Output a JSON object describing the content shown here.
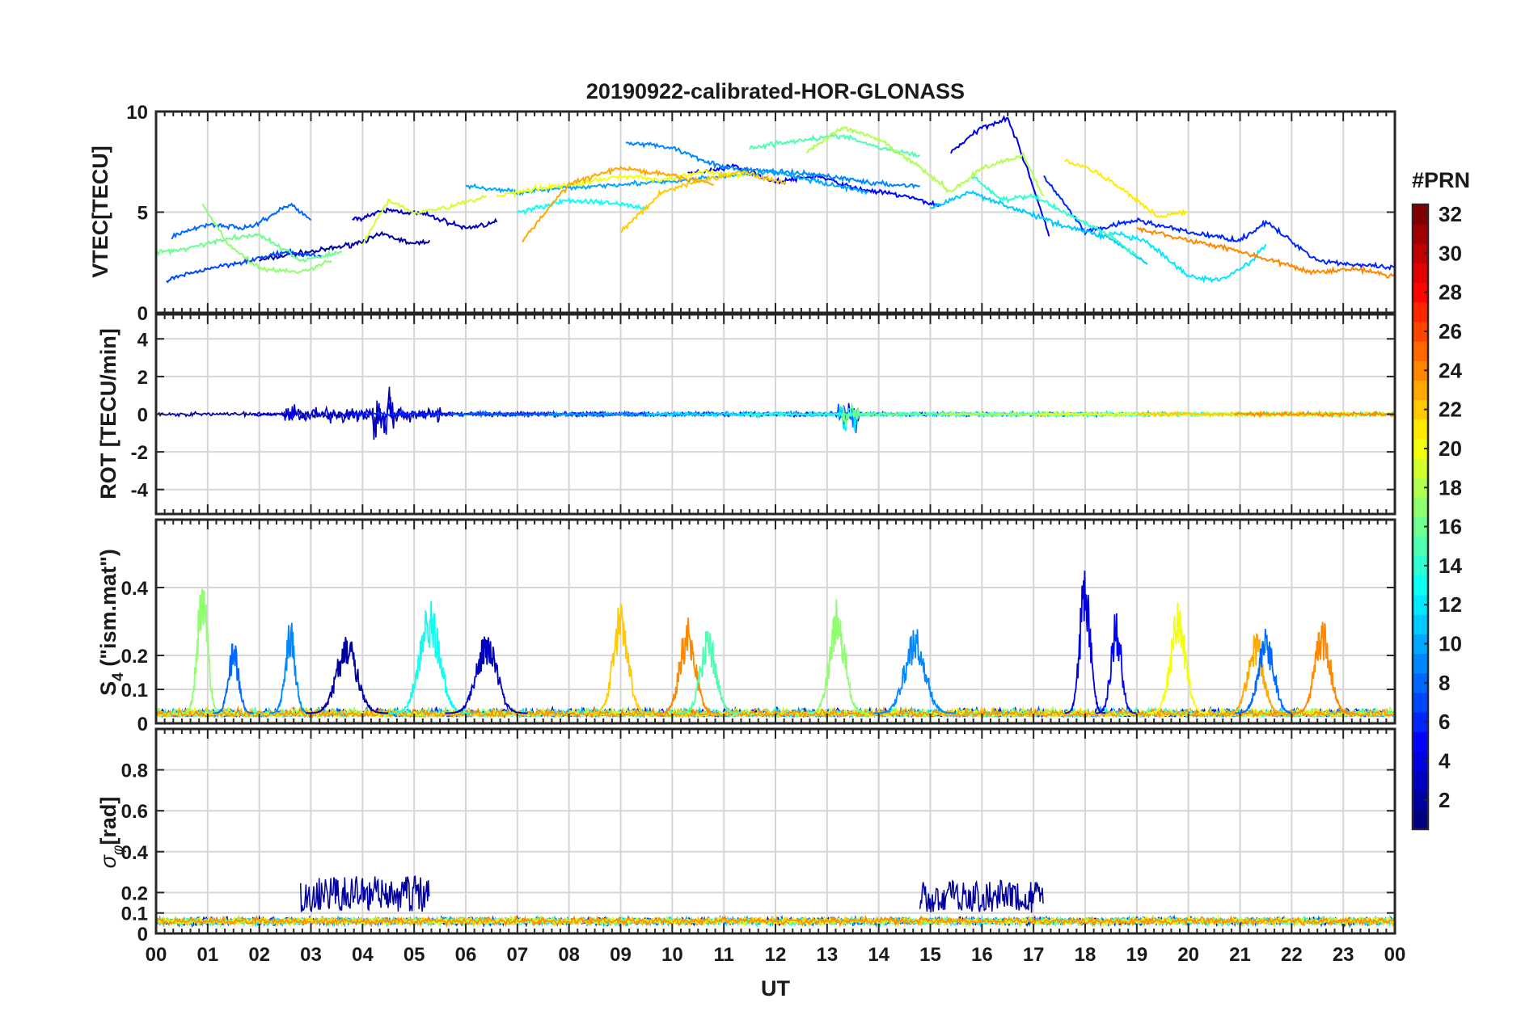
{
  "figure": {
    "title": "20190922-calibrated-HOR-GLONASS",
    "xlabel": "UT",
    "x_ticks": [
      "00",
      "01",
      "02",
      "03",
      "04",
      "05",
      "06",
      "07",
      "08",
      "09",
      "10",
      "11",
      "12",
      "13",
      "14",
      "15",
      "16",
      "17",
      "18",
      "19",
      "20",
      "21",
      "22",
      "23",
      "00"
    ],
    "colorbar": {
      "title": "#PRN",
      "range": [
        1,
        32
      ],
      "ticks": [
        2,
        4,
        6,
        8,
        10,
        12,
        14,
        16,
        18,
        20,
        22,
        24,
        26,
        28,
        30,
        32
      ],
      "colormap": "jet"
    }
  },
  "chart_data": [
    {
      "type": "line",
      "panel": "vtec",
      "ylabel": "VTEC[TECU]",
      "ylim": [
        0,
        10
      ],
      "yticks": [
        0,
        5,
        10
      ],
      "ytick_labels": [
        "0",
        "5",
        "10"
      ],
      "xlim_hours": [
        0,
        24
      ],
      "grid": true,
      "series": [
        {
          "prn": 2,
          "t": [
            2.0,
            2.6,
            3.2,
            3.8,
            4.4,
            5.0,
            5.3
          ],
          "v": [
            2.6,
            2.9,
            3.1,
            3.4,
            3.9,
            3.4,
            3.6
          ]
        },
        {
          "prn": 3,
          "t": [
            3.8,
            4.5,
            5.2,
            6.0,
            6.6
          ],
          "v": [
            4.6,
            5.1,
            4.9,
            4.2,
            4.5
          ]
        },
        {
          "prn": 5,
          "t": [
            10.3,
            11.2,
            12.0,
            12.8,
            13.5,
            14.5,
            15.2
          ],
          "v": [
            6.9,
            7.3,
            6.5,
            6.8,
            6.2,
            5.8,
            5.3
          ]
        },
        {
          "prn": 4,
          "t": [
            15.4,
            16.0,
            16.5,
            16.9,
            17.3
          ],
          "v": [
            8.0,
            9.2,
            9.7,
            7.0,
            3.8
          ]
        },
        {
          "prn": 6,
          "t": [
            17.2,
            18.0,
            19.0,
            20.0,
            21.0,
            21.5,
            22.5,
            23.2,
            24.0
          ],
          "v": [
            6.8,
            4.0,
            4.6,
            4.0,
            3.6,
            4.5,
            2.6,
            2.4,
            2.2
          ]
        },
        {
          "prn": 7,
          "t": [
            0.2,
            1.0,
            1.8,
            2.5,
            3.2
          ],
          "v": [
            1.6,
            2.2,
            2.6,
            3.0,
            2.8
          ]
        },
        {
          "prn": 8,
          "t": [
            0.3,
            1.0,
            1.8,
            2.6,
            3.0
          ],
          "v": [
            3.8,
            4.4,
            4.2,
            5.4,
            4.6
          ]
        },
        {
          "prn": 9,
          "t": [
            9.1,
            10.0,
            11.0,
            12.0,
            13.0,
            14.0,
            14.8
          ],
          "v": [
            8.5,
            8.2,
            7.2,
            7.0,
            6.8,
            6.4,
            6.3
          ]
        },
        {
          "prn": 10,
          "t": [
            6.0,
            7.0,
            8.0,
            9.0,
            10.0,
            11.0,
            12.0,
            13.0,
            13.8
          ],
          "v": [
            6.3,
            6.0,
            6.2,
            6.4,
            6.5,
            6.8,
            7.0,
            6.4,
            6.0
          ]
        },
        {
          "prn": 11,
          "t": [
            15.0,
            15.8,
            16.6,
            17.5,
            18.5,
            19.2
          ],
          "v": [
            5.2,
            6.0,
            5.2,
            4.4,
            3.7,
            2.4
          ]
        },
        {
          "prn": 12,
          "t": [
            18.5,
            19.2,
            20.0,
            20.6,
            21.2,
            21.5
          ],
          "v": [
            4.0,
            3.5,
            1.8,
            1.6,
            2.5,
            3.4
          ]
        },
        {
          "prn": 13,
          "t": [
            7.0,
            8.0,
            9.0,
            9.5
          ],
          "v": [
            5.0,
            5.6,
            5.4,
            5.2
          ]
        },
        {
          "prn": 14,
          "t": [
            15.8,
            16.4,
            17.0,
            17.6,
            18.5,
            19.0
          ],
          "v": [
            6.8,
            5.6,
            5.8,
            5.0,
            3.8,
            2.8
          ]
        },
        {
          "prn": 15,
          "t": [
            11.5,
            12.5,
            13.3,
            14.0,
            14.8
          ],
          "v": [
            8.2,
            8.6,
            8.8,
            8.2,
            7.8
          ]
        },
        {
          "prn": 16,
          "t": [
            0.0,
            0.6,
            1.2,
            2.0,
            2.8,
            3.6
          ],
          "v": [
            3.0,
            3.2,
            3.6,
            3.9,
            2.6,
            3.0
          ]
        },
        {
          "prn": 17,
          "t": [
            0.9,
            1.4,
            2.0,
            2.8,
            3.4
          ],
          "v": [
            5.4,
            3.4,
            2.2,
            2.0,
            2.6
          ]
        },
        {
          "prn": 18,
          "t": [
            12.6,
            13.3,
            14.0,
            14.7,
            15.4,
            16.0,
            16.8,
            17.2
          ],
          "v": [
            8.0,
            9.2,
            8.6,
            7.4,
            6.0,
            7.2,
            7.8,
            5.8
          ]
        },
        {
          "prn": 19,
          "t": [
            4.0,
            4.5,
            5.0,
            5.6,
            6.4
          ],
          "v": [
            3.4,
            5.6,
            5.0,
            5.2,
            5.8
          ]
        },
        {
          "prn": 20,
          "t": [
            6.6,
            7.4,
            8.2,
            9.0,
            9.8,
            10.6,
            11.4
          ],
          "v": [
            5.8,
            6.2,
            6.4,
            6.8,
            6.6,
            7.0,
            6.8
          ]
        },
        {
          "prn": 21,
          "t": [
            17.6,
            18.2,
            18.8,
            19.4,
            20.0
          ],
          "v": [
            7.6,
            7.0,
            6.0,
            4.8,
            5.0
          ]
        },
        {
          "prn": 22,
          "t": [
            9.0,
            9.8,
            10.6,
            11.4,
            12.2
          ],
          "v": [
            4.0,
            6.0,
            6.6,
            7.0,
            6.4
          ]
        },
        {
          "prn": 23,
          "t": [
            7.1,
            8.0,
            9.0,
            10.0,
            10.8
          ],
          "v": [
            3.6,
            6.4,
            7.2,
            6.8,
            6.4
          ]
        },
        {
          "prn": 24,
          "t": [
            19.0,
            20.0,
            20.8,
            21.6,
            22.4,
            23.2,
            24.0
          ],
          "v": [
            4.2,
            3.6,
            3.2,
            2.6,
            2.0,
            2.2,
            1.8
          ]
        }
      ]
    },
    {
      "type": "line",
      "panel": "rot",
      "ylabel": "ROT [TECU/min]",
      "ylim": [
        -5.3,
        5.3
      ],
      "yticks": [
        -4,
        -2,
        0,
        2,
        4
      ],
      "ytick_labels": [
        "-4",
        "-2",
        "0",
        "2",
        "4"
      ],
      "grid": true,
      "noise_model": {
        "baseline_amplitude": 0.15,
        "burst_windows": [
          {
            "start": 2.5,
            "end": 5.5,
            "amplitude": 0.8
          },
          {
            "start": 4.2,
            "end": 4.6,
            "amplitude": 2.2
          },
          {
            "start": 13.2,
            "end": 13.6,
            "amplitude": 1.6
          }
        ]
      },
      "prns": [
        2,
        4,
        6,
        8,
        10,
        12,
        14,
        16,
        18,
        20,
        22,
        24
      ]
    },
    {
      "type": "line",
      "panel": "s4",
      "ylabel": "S4 (\"ism.mat\")",
      "ylabel_main": "S",
      "ylabel_sub": "4",
      "ylabel_rest": " (\"ism.mat\")",
      "ylim": [
        0,
        0.6
      ],
      "yticks": [
        0,
        0.1,
        0.2,
        0.4
      ],
      "ytick_labels": [
        "0",
        "0.1",
        "0.2",
        "0.4"
      ],
      "grid": true,
      "spikes": [
        {
          "prn": 17,
          "t": 0.9,
          "peak": 0.42,
          "width": 0.2
        },
        {
          "prn": 8,
          "t": 1.5,
          "peak": 0.22,
          "width": 0.2
        },
        {
          "prn": 9,
          "t": 2.6,
          "peak": 0.28,
          "width": 0.2
        },
        {
          "prn": 2,
          "t": 3.7,
          "peak": 0.24,
          "width": 0.4
        },
        {
          "prn": 13,
          "t": 5.3,
          "peak": 0.34,
          "width": 0.4
        },
        {
          "prn": 3,
          "t": 6.4,
          "peak": 0.25,
          "width": 0.4
        },
        {
          "prn": 22,
          "t": 9.0,
          "peak": 0.33,
          "width": 0.3
        },
        {
          "prn": 24,
          "t": 10.3,
          "peak": 0.29,
          "width": 0.3
        },
        {
          "prn": 15,
          "t": 10.7,
          "peak": 0.26,
          "width": 0.3
        },
        {
          "prn": 17,
          "t": 13.2,
          "peak": 0.34,
          "width": 0.3
        },
        {
          "prn": 9,
          "t": 14.7,
          "peak": 0.26,
          "width": 0.4
        },
        {
          "prn": 4,
          "t": 18.0,
          "peak": 0.47,
          "width": 0.2
        },
        {
          "prn": 5,
          "t": 18.6,
          "peak": 0.31,
          "width": 0.2
        },
        {
          "prn": 20,
          "t": 19.8,
          "peak": 0.33,
          "width": 0.3
        },
        {
          "prn": 23,
          "t": 21.3,
          "peak": 0.25,
          "width": 0.3
        },
        {
          "prn": 8,
          "t": 21.5,
          "peak": 0.26,
          "width": 0.3
        },
        {
          "prn": 24,
          "t": 22.6,
          "peak": 0.28,
          "width": 0.3
        }
      ],
      "prns": [
        2,
        4,
        6,
        8,
        10,
        12,
        14,
        16,
        18,
        20,
        22,
        24
      ]
    },
    {
      "type": "line",
      "panel": "sigma",
      "ylabel": "σφ[rad]",
      "ylabel_main": "σ",
      "ylabel_sub": "φ",
      "ylabel_rest": "[rad]",
      "ylim": [
        0,
        1.0
      ],
      "yticks": [
        0,
        0.1,
        0.2,
        0.4,
        0.6,
        0.8
      ],
      "ytick_labels": [
        "0",
        "0.1",
        "0.2",
        "0.4",
        "0.6",
        "0.8"
      ],
      "grid": true,
      "bursts": [
        {
          "prn": 2,
          "start": 2.8,
          "end": 5.3,
          "peak": 0.28
        },
        {
          "prn": 2,
          "start": 14.8,
          "end": 17.2,
          "peak": 0.26
        }
      ],
      "baseline_level": 0.06,
      "prns": [
        2,
        6,
        8,
        10,
        12,
        14,
        16,
        18,
        20,
        22,
        24
      ]
    }
  ]
}
